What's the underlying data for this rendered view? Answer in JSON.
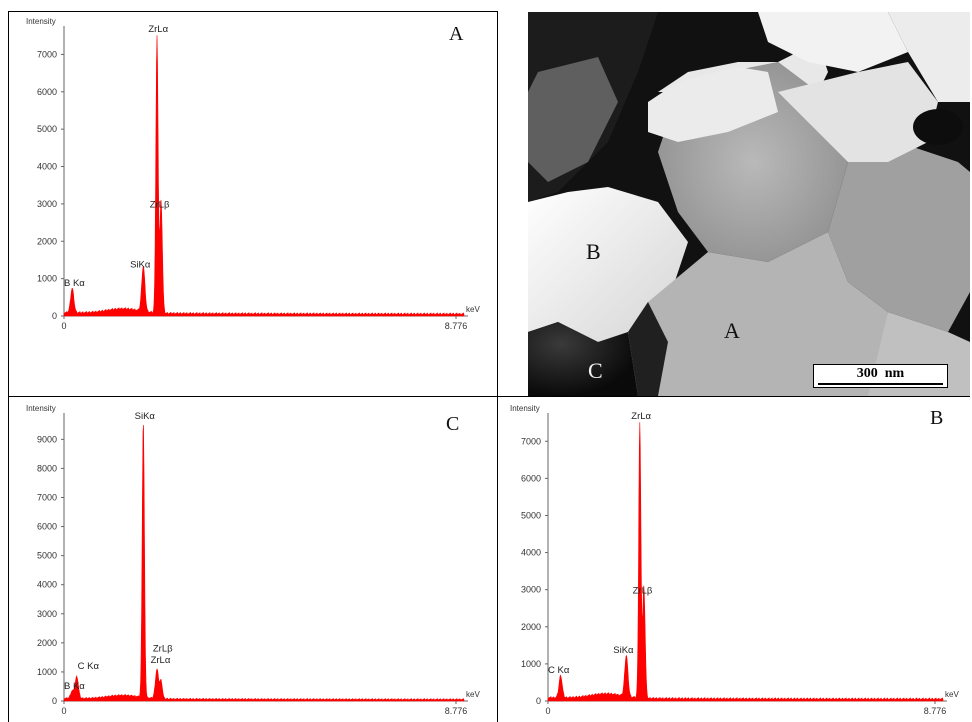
{
  "chart_data": [
    {
      "type": "area",
      "panel": "A",
      "ylabel": "Intensity",
      "xlabel": "keV",
      "x_ticks": [
        "0",
        "8.776"
      ],
      "y_ticks": [
        0,
        1000,
        2000,
        3000,
        4000,
        5000,
        6000,
        7000
      ],
      "ylim": [
        0,
        7600
      ],
      "xlim": [
        0,
        8.776
      ],
      "color": "#ff0000",
      "peaks": [
        {
          "x": 0.18,
          "y": 650,
          "w": 0.05
        },
        {
          "x": 1.74,
          "y": 1200,
          "w": 0.05
        },
        {
          "x": 2.04,
          "y": 7400,
          "w": 0.035
        },
        {
          "x": 2.13,
          "y": 3000,
          "w": 0.04
        }
      ],
      "annotations": [
        {
          "text": "B Kα",
          "x": 0.0,
          "y": 800
        },
        {
          "text": "SiKα",
          "x": 1.45,
          "y": 1300
        },
        {
          "text": "ZrLα",
          "x": 1.85,
          "y": 7600
        },
        {
          "text": "ZrLβ",
          "x": 1.88,
          "y": 2900
        }
      ]
    },
    {
      "type": "area",
      "panel": "C",
      "ylabel": "Intensity",
      "xlabel": "keV",
      "x_ticks": [
        "0",
        "8.776"
      ],
      "y_ticks": [
        0,
        1000,
        2000,
        3000,
        4000,
        5000,
        6000,
        7000,
        8000,
        9000
      ],
      "ylim": [
        0,
        9700
      ],
      "xlim": [
        0,
        8.776
      ],
      "color": "#ff0000",
      "peaks": [
        {
          "x": 0.18,
          "y": 250,
          "w": 0.05
        },
        {
          "x": 0.28,
          "y": 750,
          "w": 0.05
        },
        {
          "x": 1.74,
          "y": 9500,
          "w": 0.035
        },
        {
          "x": 2.04,
          "y": 1000,
          "w": 0.05
        },
        {
          "x": 2.13,
          "y": 600,
          "w": 0.04
        }
      ],
      "annotations": [
        {
          "text": "B Kα",
          "x": 0.0,
          "y": 420
        },
        {
          "text": "C Kα",
          "x": 0.3,
          "y": 1100
        },
        {
          "text": "SiKα",
          "x": 1.55,
          "y": 9700
        },
        {
          "text": "ZrLβ",
          "x": 1.95,
          "y": 1700
        },
        {
          "text": "ZrLα",
          "x": 1.9,
          "y": 1300
        }
      ]
    },
    {
      "type": "area",
      "panel": "B",
      "ylabel": "Intensity",
      "xlabel": "keV",
      "x_ticks": [
        "0",
        "8.776"
      ],
      "y_ticks": [
        0,
        1000,
        2000,
        3000,
        4000,
        5000,
        6000,
        7000
      ],
      "ylim": [
        0,
        7600
      ],
      "xlim": [
        0,
        8.776
      ],
      "color": "#ff0000",
      "peaks": [
        {
          "x": 0.28,
          "y": 600,
          "w": 0.05
        },
        {
          "x": 1.74,
          "y": 1100,
          "w": 0.05
        },
        {
          "x": 2.04,
          "y": 7400,
          "w": 0.035
        },
        {
          "x": 2.13,
          "y": 3000,
          "w": 0.04
        }
      ],
      "annotations": [
        {
          "text": "C Kα",
          "x": 0.0,
          "y": 750
        },
        {
          "text": "SiKα",
          "x": 1.45,
          "y": 1300
        },
        {
          "text": "ZrLα",
          "x": 1.85,
          "y": 7600
        },
        {
          "text": "ZrLβ",
          "x": 1.88,
          "y": 2900
        }
      ]
    }
  ],
  "micrograph": {
    "region_labels": [
      "A",
      "B",
      "C"
    ],
    "scale_bar": "300  nm"
  }
}
